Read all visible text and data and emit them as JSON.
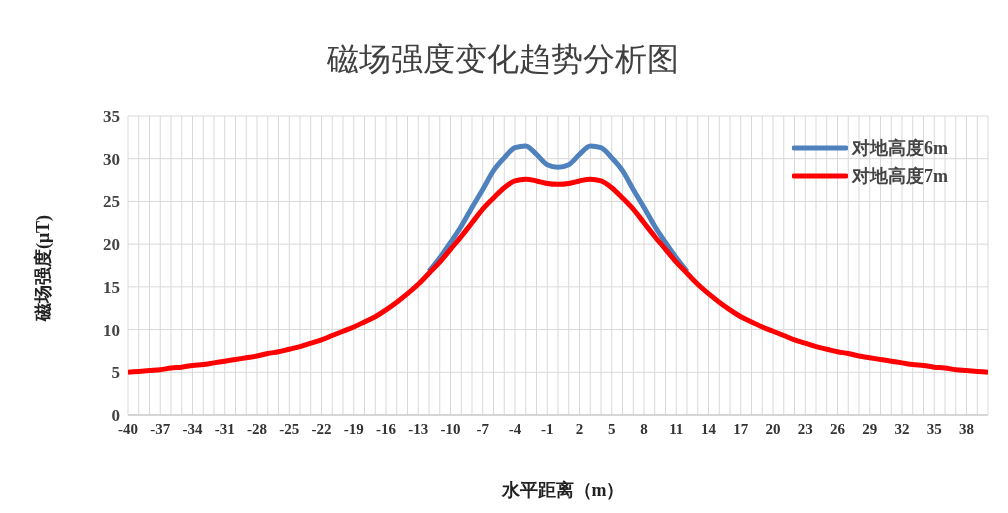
{
  "chart_data": {
    "type": "line",
    "title": "磁场强度变化趋势分析图",
    "xlabel": "水平距离（m）",
    "ylabel": "磁场强度(μT)",
    "categories": [
      "-40",
      null,
      null,
      "-37",
      null,
      null,
      "-34",
      null,
      null,
      "-31",
      null,
      null,
      "-28",
      null,
      null,
      "-25",
      null,
      null,
      "-22",
      null,
      null,
      "-19",
      null,
      null,
      "-16",
      null,
      null,
      "-13",
      null,
      null,
      "-10",
      null,
      null,
      "-7",
      null,
      null,
      "-4",
      null,
      null,
      "-1",
      null,
      null,
      "2",
      null,
      null,
      "5",
      null,
      null,
      "8",
      null,
      null,
      "11",
      null,
      null,
      "14",
      null,
      null,
      "17",
      null,
      null,
      "20",
      null,
      null,
      "23",
      null,
      null,
      "26",
      null,
      null,
      "29",
      null,
      null,
      "32",
      null,
      null,
      "35",
      null,
      null,
      "38",
      null,
      null
    ],
    "series": [
      {
        "name": "对地高度6m",
        "color": "#4f81bd",
        "values": [
          null,
          null,
          null,
          null,
          null,
          null,
          null,
          null,
          null,
          null,
          null,
          null,
          null,
          null,
          null,
          null,
          null,
          null,
          null,
          null,
          null,
          null,
          null,
          null,
          null,
          null,
          null,
          null,
          16.8,
          18.4,
          20.2,
          22.1,
          24.3,
          26.4,
          28.6,
          30.1,
          31.3,
          31.5,
          30.5,
          29.3,
          29.0,
          29.3,
          30.5,
          31.5,
          31.3,
          30.1,
          28.6,
          26.4,
          24.3,
          22.1,
          20.2,
          18.4,
          16.8,
          null,
          null,
          null,
          null,
          null,
          null,
          null,
          null,
          null,
          null,
          null,
          null,
          null,
          null,
          null,
          null,
          null,
          null,
          null,
          null,
          null,
          null,
          null,
          null,
          null,
          null,
          null,
          null
        ]
      },
      {
        "name": "对地高度7m",
        "color": "#ff0000",
        "values": [
          5.0,
          5.1,
          5.2,
          5.3,
          5.5,
          5.6,
          5.8,
          5.9,
          6.1,
          6.3,
          6.5,
          6.7,
          6.9,
          7.2,
          7.4,
          7.7,
          8.0,
          8.4,
          8.8,
          9.3,
          9.8,
          10.3,
          10.9,
          11.5,
          12.3,
          13.2,
          14.2,
          15.3,
          16.6,
          17.9,
          19.4,
          20.9,
          22.5,
          24.1,
          25.4,
          26.6,
          27.4,
          27.6,
          27.4,
          27.1,
          27.0,
          27.1,
          27.4,
          27.6,
          27.4,
          26.6,
          25.4,
          24.1,
          22.5,
          20.9,
          19.4,
          17.9,
          16.6,
          15.3,
          14.2,
          13.2,
          12.3,
          11.5,
          10.9,
          10.3,
          9.8,
          9.3,
          8.8,
          8.4,
          8.0,
          7.7,
          7.4,
          7.2,
          6.9,
          6.7,
          6.5,
          6.3,
          6.1,
          5.9,
          5.8,
          5.6,
          5.5,
          5.3,
          5.2,
          5.1,
          5.0
        ]
      }
    ],
    "ylim": [
      0,
      35
    ],
    "yticks": [
      0,
      5,
      10,
      15,
      20,
      25,
      30,
      35
    ],
    "grid": true,
    "legend": "top right",
    "line_style": "solid"
  }
}
